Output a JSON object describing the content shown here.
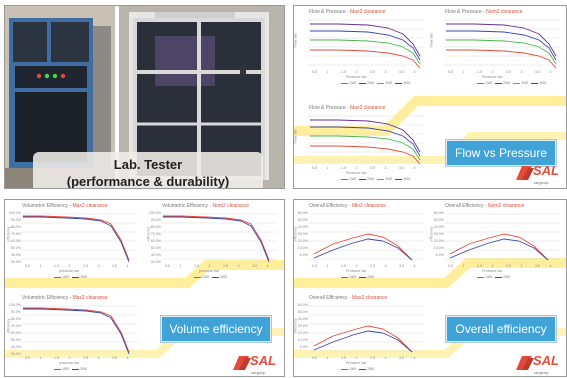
{
  "colors": {
    "red": "#e24b3a",
    "blue": "#3a46a8",
    "green": "#4cb84a",
    "purple": "#6a2f8f",
    "badge": "#3fa3d8",
    "stripe": "#ffef9c"
  },
  "lab_panel": {
    "caption_line1": "Lab. Tester",
    "caption_line2": "(performance & durability)"
  },
  "pressure_panel": {
    "badge": "Flow vs Pressure",
    "charts": [
      {
        "title_prefix": "Flow & Pressure - ",
        "title_highlight": "Max2 clearance",
        "y_axis": "Flow rate",
        "x_axis": "Pressure   bar"
      },
      {
        "title_prefix": "Flow & Pressure - ",
        "title_highlight": "Nom2 clearance",
        "y_axis": "Flow rate",
        "x_axis": "Pressure   bar"
      },
      {
        "title_prefix": "Flow & Pressure - ",
        "title_highlight": "Max2 clearance",
        "y_axis": "Flow rate",
        "x_axis": "Pressure   bar"
      }
    ],
    "legend": [
      "1000",
      "2000",
      "3000",
      "4000"
    ]
  },
  "volume_panel": {
    "badge": "Volume efficiency",
    "charts": [
      {
        "title_prefix": "Volumetric Efficiency - ",
        "title_highlight": "Max2 clearance",
        "y_axis": "efficiency",
        "x_axis": "pressure   bar"
      },
      {
        "title_prefix": "Volumetric Efficiency - ",
        "title_highlight": "Nom2 clearance",
        "y_axis": "efficiency",
        "x_axis": "pressure   bar"
      },
      {
        "title_prefix": "Volumetric Efficiency - ",
        "title_highlight": "Max2 clearance",
        "y_axis": "efficiency",
        "x_axis": "pressure   bar"
      }
    ],
    "legend": [
      "1000",
      "2000"
    ],
    "y_ticks": [
      "100.0%",
      "90.0%",
      "80.0%",
      "70.0%",
      "60.0%",
      "50.0%",
      "40.0%",
      "30.0%"
    ]
  },
  "overall_panel": {
    "badge": "Overall efficiency",
    "charts": [
      {
        "title_prefix": "Overall Efficiency - ",
        "title_highlight": "Min2 clearance",
        "y_axis": "efficiency",
        "x_axis": "Pressure   bar"
      },
      {
        "title_prefix": "Overall Efficiency - ",
        "title_highlight": "Nom2 clearance",
        "y_axis": "efficiency",
        "x_axis": "Pressure   bar"
      },
      {
        "title_prefix": "Overall Efficiency - ",
        "title_highlight": "Max2 clearance",
        "y_axis": "efficiency",
        "x_axis": "Pressure   bar"
      }
    ],
    "legend": [
      "1000",
      "2000"
    ],
    "y_ticks": [
      "60.0%",
      "50.0%",
      "40.0%",
      "30.0%",
      "20.0%",
      "10.0%",
      "0.0%"
    ]
  },
  "x_ticks": [
    "0.5",
    "1",
    "1.5",
    "2",
    "2.5",
    "3",
    "3.5",
    "4"
  ],
  "brand": {
    "name": "SAL",
    "tagline": "sal group"
  }
}
